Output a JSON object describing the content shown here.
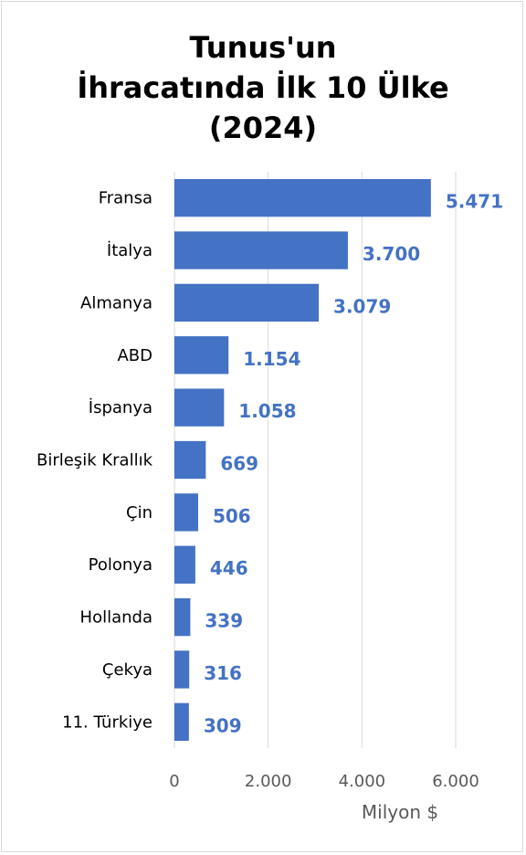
{
  "chart_data": {
    "type": "bar",
    "orientation": "horizontal",
    "title_lines": [
      "Tunus'un",
      "İhracatında İlk 10 Ülke",
      "(2024)"
    ],
    "categories": [
      "Fransa",
      "İtalya",
      "Almanya",
      "ABD",
      "İspanya",
      "Birleşik Krallık",
      "Çin",
      "Polonya",
      "Hollanda",
      "Çekya",
      "11. Türkiye"
    ],
    "values": [
      5471,
      3700,
      3079,
      1154,
      1058,
      669,
      506,
      446,
      339,
      316,
      309
    ],
    "data_labels": [
      "5.471",
      "3.700",
      "3.079",
      "1.154",
      "1.058",
      "669",
      "506",
      "446",
      "339",
      "316",
      "309"
    ],
    "xlabel": "Milyon $",
    "xlim": [
      0,
      6000
    ],
    "x_ticks": [
      0,
      2000,
      4000,
      6000
    ],
    "x_tick_labels": [
      "0",
      "2.000",
      "4.000",
      "6.000"
    ],
    "grid": "vertical",
    "bar_color": "#4472c4",
    "label_color": "#4472c4"
  }
}
